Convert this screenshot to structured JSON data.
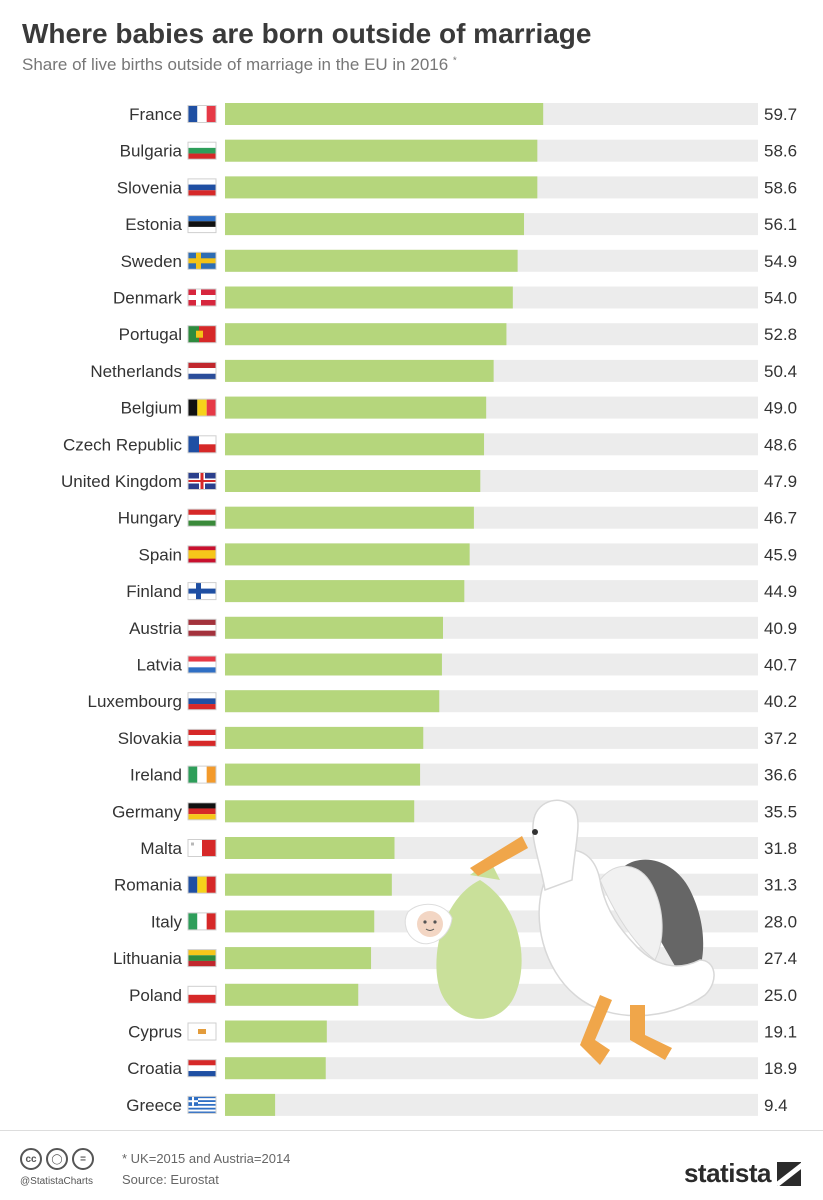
{
  "header": {
    "title": "Where babies are born outside of marriage",
    "subtitle": "Share of live births outside of marriage in the EU in 2016",
    "subtitle_mark": "*"
  },
  "colors": {
    "bar": "#b5d67c",
    "track": "#ececec",
    "stork_bag": "#c9e09a"
  },
  "chart_data": {
    "type": "bar",
    "orientation": "horizontal",
    "title": "Where babies are born outside of marriage",
    "subtitle": "Share of live births outside of marriage in the EU in 2016 *",
    "xlabel": "",
    "ylabel": "",
    "xlim": [
      0,
      100
    ],
    "grid": false,
    "legend": "none",
    "categories": [
      "France",
      "Bulgaria",
      "Slovenia",
      "Estonia",
      "Sweden",
      "Denmark",
      "Portugal",
      "Netherlands",
      "Belgium",
      "Czech Republic",
      "United Kingdom",
      "Hungary",
      "Spain",
      "Finland",
      "Austria",
      "Latvia",
      "Luxembourg",
      "Slovakia",
      "Ireland",
      "Germany",
      "Malta",
      "Romania",
      "Italy",
      "Lithuania",
      "Poland",
      "Cyprus",
      "Croatia",
      "Greece"
    ],
    "values": [
      59.7,
      58.6,
      58.6,
      56.1,
      54.9,
      54.0,
      52.8,
      50.4,
      49.0,
      48.6,
      47.9,
      46.7,
      45.9,
      44.9,
      40.9,
      40.7,
      40.2,
      37.2,
      36.6,
      35.5,
      31.8,
      31.3,
      28.0,
      27.4,
      25.0,
      19.1,
      18.9,
      9.4
    ],
    "value_labels": [
      "59.7",
      "58.6",
      "58.6",
      "56.1",
      "54.9",
      "54.0",
      "52.8",
      "50.4",
      "49.0",
      "48.6",
      "47.9",
      "46.7",
      "45.9",
      "44.9",
      "40.9",
      "40.7",
      "40.2",
      "37.2",
      "36.6",
      "35.5",
      "31.8",
      "31.3",
      "28.0",
      "27.4",
      "25.0",
      "19.1",
      "18.9",
      "9.4"
    ],
    "flag_icons": [
      "flag-france-icon",
      "flag-bulgaria-icon",
      "flag-slovenia-icon",
      "flag-estonia-icon",
      "flag-sweden-icon",
      "flag-denmark-icon",
      "flag-portugal-icon",
      "flag-netherlands-icon",
      "flag-belgium-icon",
      "flag-czech-republic-icon",
      "flag-united-kingdom-icon",
      "flag-hungary-icon",
      "flag-spain-icon",
      "flag-finland-icon",
      "flag-austria-icon",
      "flag-latvia-icon",
      "flag-luxembourg-icon",
      "flag-slovakia-icon",
      "flag-ireland-icon",
      "flag-germany-icon",
      "flag-malta-icon",
      "flag-romania-icon",
      "flag-italy-icon",
      "flag-lithuania-icon",
      "flag-poland-icon",
      "flag-cyprus-icon",
      "flag-croatia-icon",
      "flag-greece-icon"
    ]
  },
  "illustration": {
    "icon": "stork-carrying-baby-icon"
  },
  "footer": {
    "license_icons": [
      "cc-icon",
      "by-icon",
      "nd-icon"
    ],
    "handle": "@StatistaCharts",
    "footnote": "* UK=2015 and Austria=2014",
    "source": "Source: Eurostat",
    "brand": "statista",
    "brand_icon": "statista-logo-icon"
  }
}
